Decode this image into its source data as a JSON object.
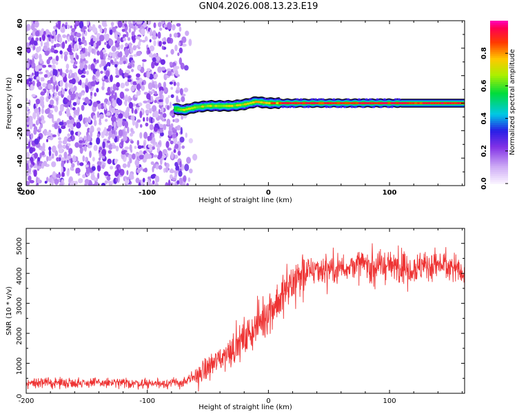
{
  "figure_title": "GN04.2026.008.13.23.E19",
  "chart_data": [
    {
      "type": "heatmap",
      "title": "",
      "xlabel": "Height of straight line (km)",
      "ylabel": "Frequency (Hz)",
      "xlim": [
        -200,
        162
      ],
      "ylim": [
        -60,
        60
      ],
      "xticks": [
        -200,
        -100,
        0,
        100
      ],
      "yticks": [
        -60,
        -40,
        -20,
        0,
        20,
        40,
        60
      ],
      "colorbar": {
        "label": "Normalized spectral amplitude",
        "range": [
          0.0,
          1.0
        ],
        "ticks": [
          "0.0",
          "0.2",
          "0.4",
          "0.6",
          "0.8"
        ]
      },
      "noise_region_x": [
        -200,
        -62
      ],
      "signal_band": {
        "x_start": -78,
        "x_end": 162,
        "center_frequency": [
          [
            -78,
            -4
          ],
          [
            -70,
            -5
          ],
          [
            -60,
            -3
          ],
          [
            -50,
            -2
          ],
          [
            -40,
            -2
          ],
          [
            -30,
            -2
          ],
          [
            -20,
            -1
          ],
          [
            -10,
            1
          ],
          [
            0,
            0
          ],
          [
            20,
            0
          ],
          [
            60,
            0
          ],
          [
            100,
            0
          ],
          [
            162,
            0
          ]
        ]
      }
    },
    {
      "type": "line",
      "title": "",
      "xlabel": "Height of straight line (km)",
      "ylabel": "SNR (10 * v/v)",
      "xlim": [
        -200,
        162
      ],
      "ylim": [
        0,
        5500
      ],
      "xticks": [
        -200,
        -100,
        0,
        100
      ],
      "yticks": [
        0,
        1000,
        2000,
        3000,
        4000,
        5000
      ],
      "series": [
        {
          "name": "SNR",
          "color": "#ee3333",
          "trend": [
            [
              -200,
              350
            ],
            [
              -150,
              350
            ],
            [
              -100,
              330
            ],
            [
              -70,
              350
            ],
            [
              -60,
              550
            ],
            [
              -50,
              850
            ],
            [
              -40,
              1150
            ],
            [
              -30,
              1500
            ],
            [
              -20,
              1800
            ],
            [
              -10,
              2250
            ],
            [
              0,
              2750
            ],
            [
              10,
              3150
            ],
            [
              20,
              3700
            ],
            [
              30,
              4000
            ],
            [
              40,
              4150
            ],
            [
              60,
              4200
            ],
            [
              80,
              4300
            ],
            [
              100,
              4250
            ],
            [
              120,
              4200
            ],
            [
              140,
              4300
            ],
            [
              162,
              4100
            ]
          ]
        }
      ]
    }
  ]
}
